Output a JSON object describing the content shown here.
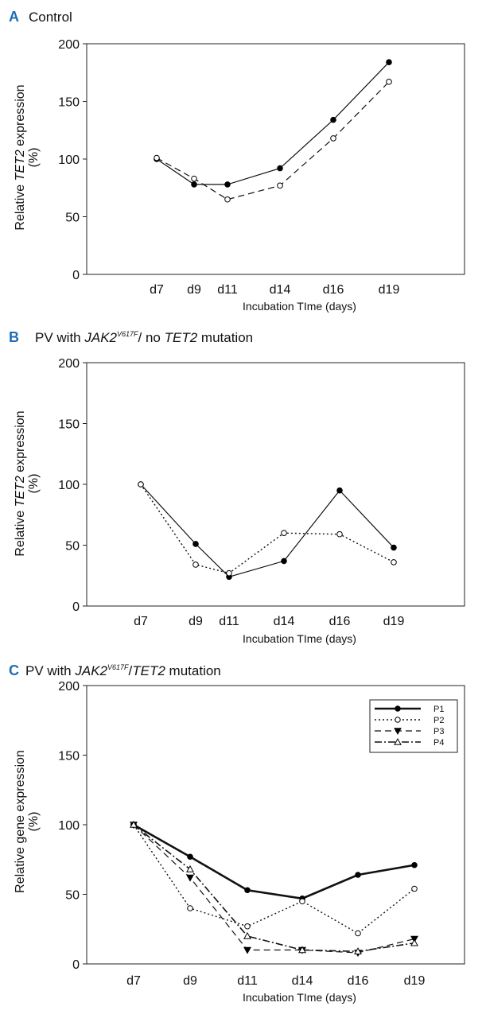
{
  "chart_data": [
    {
      "panel": "A",
      "type": "line",
      "title": "Control",
      "title_italic": "",
      "title_sup": "",
      "title_mid": "",
      "title_end": "",
      "ylabel_pre": "Relative ",
      "ylabel_italic": "TET2",
      "ylabel_post": " expression",
      "ylabel_unit": "(%)",
      "xlabel": "Incubation TIme (days)",
      "ylim": [
        0,
        200
      ],
      "yticks": [
        0,
        50,
        100,
        150,
        200
      ],
      "categories": [
        "d7",
        "d9",
        "d11",
        "d14",
        "d16",
        "d19"
      ],
      "series": [
        {
          "name": "filled",
          "marker": "filled-circle",
          "dash": "solid",
          "values": [
            100,
            78,
            78,
            92,
            134,
            184
          ]
        },
        {
          "name": "open",
          "marker": "open-circle",
          "dash": "dashed",
          "values": [
            101,
            83,
            65,
            77,
            118,
            167
          ]
        }
      ]
    },
    {
      "panel": "B",
      "type": "line",
      "title": "PV with ",
      "title_italic": "JAK2",
      "title_sup": "V617F",
      "title_mid": "/ no ",
      "title_italic2": "TET2",
      "title_end": " mutation",
      "ylabel_pre": "Relative ",
      "ylabel_italic": "TET2",
      "ylabel_post": " expression",
      "ylabel_unit": "(%)",
      "xlabel": "Incubation TIme (days)",
      "ylim": [
        0,
        200
      ],
      "yticks": [
        0,
        50,
        100,
        150,
        200
      ],
      "categories": [
        "d7",
        "d9",
        "d11",
        "d14",
        "d16",
        "d19"
      ],
      "series": [
        {
          "name": "filled",
          "marker": "filled-circle",
          "dash": "solid",
          "values": [
            100,
            51,
            24,
            37,
            95,
            48
          ]
        },
        {
          "name": "open",
          "marker": "open-circle",
          "dash": "dotted",
          "values": [
            100,
            34,
            27,
            60,
            59,
            36
          ]
        }
      ]
    },
    {
      "panel": "C",
      "type": "line",
      "title": "PV with ",
      "title_italic": "JAK2",
      "title_sup": "V617F",
      "title_mid": "/",
      "title_italic2": "TET2",
      "title_end": " mutation",
      "ylabel_pre": "Relative gene expression",
      "ylabel_italic": "",
      "ylabel_post": "",
      "ylabel_unit": "(%)",
      "xlabel": "Incubation TIme (days)",
      "ylim": [
        0,
        200
      ],
      "yticks": [
        0,
        50,
        100,
        150,
        200
      ],
      "categories": [
        "d7",
        "d9",
        "d11",
        "d14",
        "d16",
        "d19"
      ],
      "legend": "top-right",
      "series": [
        {
          "name": "P1",
          "marker": "filled-circle",
          "dash": "solid-bold",
          "values": [
            100,
            77,
            53,
            47,
            64,
            71
          ]
        },
        {
          "name": "P2",
          "marker": "open-circle",
          "dash": "dotted",
          "values": [
            100,
            40,
            27,
            45,
            22,
            54
          ]
        },
        {
          "name": "P3",
          "marker": "filled-triangle-down",
          "dash": "dashed",
          "values": [
            100,
            62,
            10,
            10,
            8,
            18
          ]
        },
        {
          "name": "P4",
          "marker": "open-triangle-up",
          "dash": "dashdot",
          "values": [
            100,
            68,
            20,
            10,
            9,
            15
          ]
        }
      ]
    }
  ]
}
